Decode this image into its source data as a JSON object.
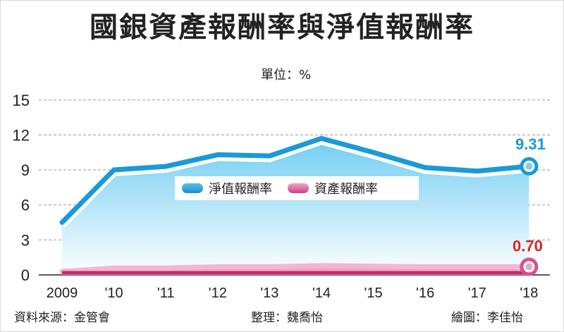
{
  "title": "國銀資產報酬率與淨值報酬率",
  "unit_label": "單位：%",
  "legend": {
    "roe_label": "淨值報酬率",
    "roa_label": "資產報酬率"
  },
  "footer": {
    "source": "資料來源：金管會",
    "editor": "整理：魏喬怡",
    "artist": "繪圖：李佳怡"
  },
  "chart_data": {
    "type": "area",
    "categories": [
      "2009",
      "'10",
      "'11",
      "'12",
      "'13",
      "'14",
      "'15",
      "'16",
      "'17",
      "'18"
    ],
    "series": [
      {
        "name": "淨值報酬率",
        "values": [
          4.5,
          9.0,
          9.3,
          10.3,
          10.2,
          11.7,
          10.5,
          9.2,
          8.9,
          9.31
        ],
        "color": "#1a9ad6"
      },
      {
        "name": "資產報酬率",
        "values": [
          0.3,
          0.6,
          0.6,
          0.7,
          0.7,
          0.8,
          0.75,
          0.7,
          0.7,
          0.7
        ],
        "color": "#d8508f"
      }
    ],
    "end_labels": [
      "9.31",
      "0.70"
    ],
    "end_label_colors": [
      "#1a9ad6",
      "#e0201f"
    ],
    "yticks": [
      "0",
      "3",
      "6",
      "9",
      "12",
      "15"
    ],
    "ylim": [
      0,
      15
    ],
    "grid": true,
    "legend_placement": "center"
  }
}
